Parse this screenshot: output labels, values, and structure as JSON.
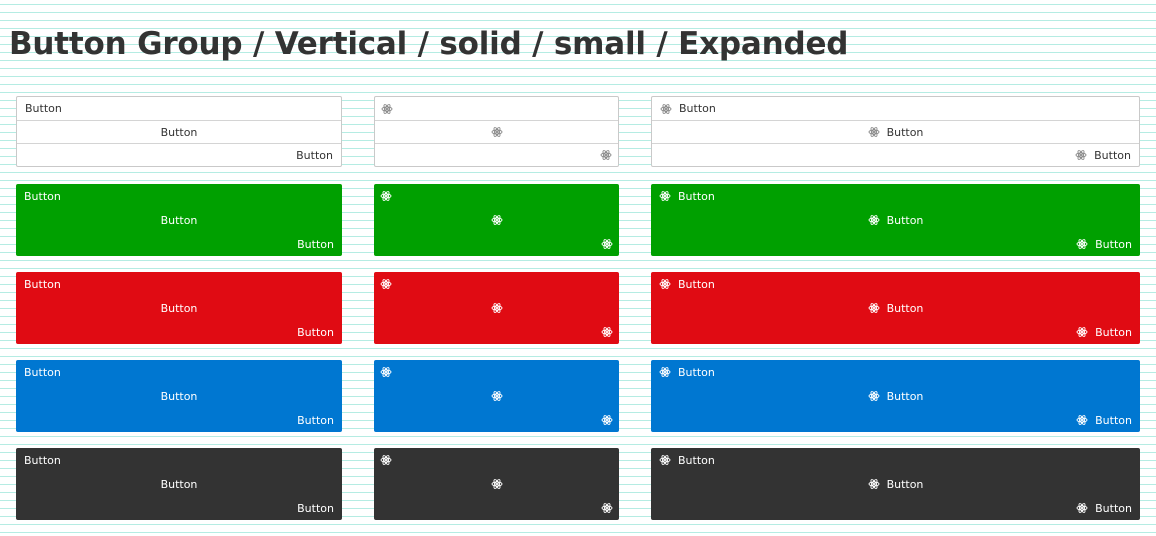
{
  "page": {
    "title": "Button Group / Vertical / solid / small / Expanded"
  },
  "button_label": "Button",
  "icon": "atom-icon",
  "alignments": [
    "left",
    "center",
    "right"
  ],
  "columns": [
    {
      "kind": "label"
    },
    {
      "kind": "icon"
    },
    {
      "kind": "icon-label"
    }
  ],
  "variants": [
    {
      "name": "outline",
      "background": "#ffffff",
      "text_color": "#333333",
      "border": "#c9c9c9"
    },
    {
      "name": "green",
      "background": "#00a000",
      "text_color": "#ffffff"
    },
    {
      "name": "red",
      "background": "#e00b13",
      "text_color": "#ffffff"
    },
    {
      "name": "blue",
      "background": "#0077d1",
      "text_color": "#ffffff"
    },
    {
      "name": "dark",
      "background": "#333333",
      "text_color": "#ffffff"
    }
  ]
}
